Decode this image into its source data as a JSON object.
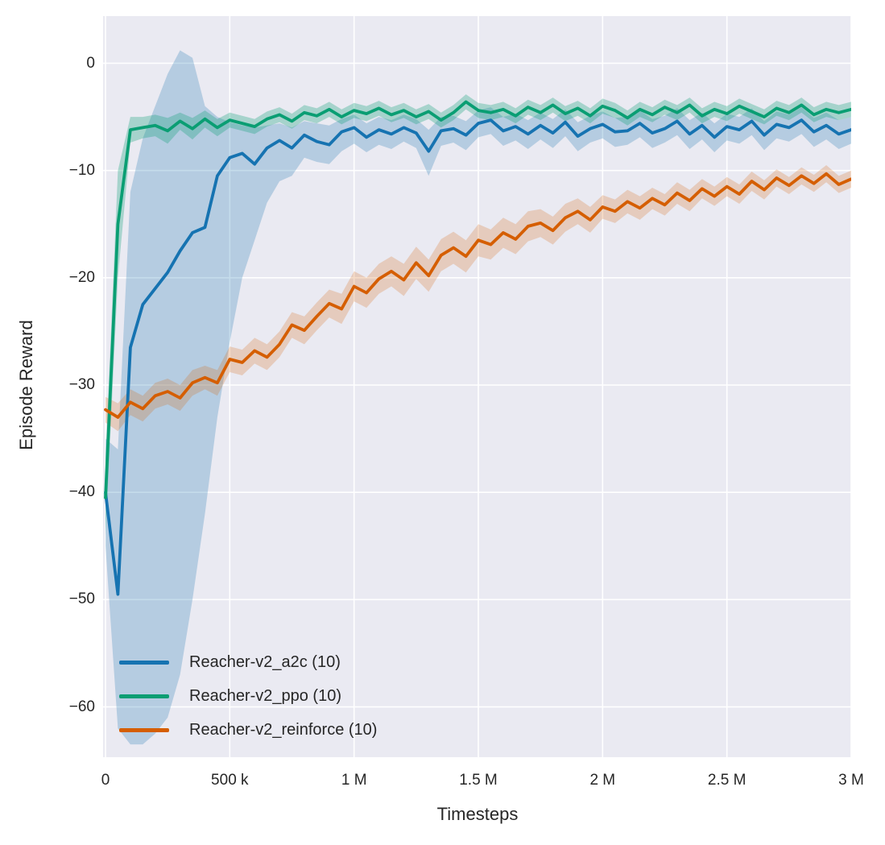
{
  "figure": {
    "background": "#ffffff",
    "axes_background": "#eaeaf2",
    "grid_color": "#ffffff",
    "text_color": "#262626"
  },
  "chart_data": {
    "type": "line",
    "title": "",
    "xlabel": "Timesteps",
    "ylabel": "Episode Reward",
    "xlim": [
      0,
      3000000
    ],
    "ylim": [
      -64.7,
      4.4
    ],
    "grid": true,
    "legend_position": "lower-left",
    "x_ticks": [
      {
        "value": 0,
        "label": "0"
      },
      {
        "value": 500000,
        "label": "500 k"
      },
      {
        "value": 1000000,
        "label": "1 M"
      },
      {
        "value": 1500000,
        "label": "1.5 M"
      },
      {
        "value": 2000000,
        "label": "2 M"
      },
      {
        "value": 2500000,
        "label": "2.5 M"
      },
      {
        "value": 3000000,
        "label": "3 M"
      }
    ],
    "y_ticks": [
      {
        "value": 0,
        "label": "0"
      },
      {
        "value": -10,
        "label": "−10"
      },
      {
        "value": -20,
        "label": "−20"
      },
      {
        "value": -30,
        "label": "−30"
      },
      {
        "value": -40,
        "label": "−40"
      },
      {
        "value": -50,
        "label": "−50"
      },
      {
        "value": -60,
        "label": "−60"
      }
    ],
    "x": [
      0,
      50000,
      100000,
      150000,
      200000,
      250000,
      300000,
      350000,
      400000,
      450000,
      500000,
      550000,
      600000,
      650000,
      700000,
      750000,
      800000,
      850000,
      900000,
      950000,
      1000000,
      1050000,
      1100000,
      1150000,
      1200000,
      1250000,
      1300000,
      1350000,
      1400000,
      1450000,
      1500000,
      1550000,
      1600000,
      1650000,
      1700000,
      1750000,
      1800000,
      1850000,
      1900000,
      1950000,
      2000000,
      2050000,
      2100000,
      2150000,
      2200000,
      2250000,
      2300000,
      2350000,
      2400000,
      2450000,
      2500000,
      2550000,
      2600000,
      2650000,
      2700000,
      2750000,
      2800000,
      2850000,
      2900000,
      2950000,
      3000000
    ],
    "series": [
      {
        "name": "Reacher-v2_a2c (10)",
        "color": "#1673b1",
        "band_opacity": 0.25,
        "mean": [
          -40.0,
          -49.5,
          -26.5,
          -22.5,
          -21.0,
          -19.5,
          -17.5,
          -15.8,
          -15.3,
          -10.5,
          -8.8,
          -8.4,
          -9.4,
          -7.9,
          -7.2,
          -7.9,
          -6.7,
          -7.3,
          -7.6,
          -6.4,
          -6.0,
          -6.9,
          -6.2,
          -6.6,
          -6.0,
          -6.5,
          -8.2,
          -6.3,
          -6.1,
          -6.7,
          -5.6,
          -5.3,
          -6.3,
          -5.9,
          -6.6,
          -5.8,
          -6.5,
          -5.5,
          -6.8,
          -6.1,
          -5.7,
          -6.4,
          -6.3,
          -5.6,
          -6.5,
          -6.1,
          -5.4,
          -6.6,
          -5.8,
          -6.9,
          -5.9,
          -6.2,
          -5.4,
          -6.7,
          -5.7,
          -6.0,
          -5.3,
          -6.4,
          -5.8,
          -6.6,
          -6.2
        ],
        "lo": [
          -45.0,
          -62.0,
          -63.5,
          -63.5,
          -62.5,
          -61.0,
          -57.0,
          -50.0,
          -42.0,
          -33.0,
          -26.0,
          -20.0,
          -16.5,
          -13.0,
          -11.0,
          -10.5,
          -8.8,
          -9.2,
          -9.4,
          -8.2,
          -7.5,
          -8.3,
          -7.6,
          -8.0,
          -7.3,
          -7.9,
          -10.5,
          -7.7,
          -7.4,
          -8.1,
          -6.9,
          -6.6,
          -7.7,
          -7.2,
          -8.0,
          -7.1,
          -7.9,
          -6.8,
          -8.2,
          -7.4,
          -7.0,
          -7.8,
          -7.6,
          -6.9,
          -7.9,
          -7.4,
          -6.7,
          -8.0,
          -7.1,
          -8.3,
          -7.2,
          -7.5,
          -6.7,
          -8.1,
          -7.0,
          -7.3,
          -6.6,
          -7.8,
          -7.1,
          -8.0,
          -7.5
        ],
        "hi": [
          -35.0,
          -36.0,
          -12.0,
          -7.0,
          -4.0,
          -1.0,
          1.2,
          0.5,
          -4.0,
          -5.0,
          -5.5,
          -5.8,
          -6.0,
          -5.8,
          -5.6,
          -6.0,
          -5.4,
          -5.6,
          -5.8,
          -5.2,
          -4.8,
          -5.6,
          -5.0,
          -5.3,
          -4.8,
          -5.2,
          -6.2,
          -5.0,
          -4.9,
          -5.4,
          -4.4,
          -4.1,
          -5.0,
          -4.7,
          -5.3,
          -4.6,
          -5.2,
          -4.3,
          -5.5,
          -4.9,
          -4.5,
          -5.1,
          -5.0,
          -4.4,
          -5.2,
          -4.9,
          -4.2,
          -5.3,
          -4.6,
          -5.6,
          -4.7,
          -5.0,
          -4.2,
          -5.4,
          -4.5,
          -4.8,
          -4.1,
          -5.1,
          -4.6,
          -5.3,
          -5.0
        ]
      },
      {
        "name": "Reacher-v2_ppo (10)",
        "color": "#0a9e73",
        "band_opacity": 0.3,
        "mean": [
          -40.5,
          -15.0,
          -6.2,
          -6.0,
          -5.8,
          -6.3,
          -5.4,
          -6.1,
          -5.2,
          -6.0,
          -5.3,
          -5.6,
          -5.9,
          -5.2,
          -4.8,
          -5.4,
          -4.6,
          -4.9,
          -4.3,
          -5.0,
          -4.4,
          -4.7,
          -4.2,
          -4.8,
          -4.4,
          -5.0,
          -4.5,
          -5.3,
          -4.6,
          -3.6,
          -4.4,
          -4.6,
          -4.3,
          -4.9,
          -4.1,
          -4.6,
          -3.9,
          -4.7,
          -4.2,
          -4.9,
          -4.0,
          -4.4,
          -5.1,
          -4.3,
          -4.8,
          -4.1,
          -4.6,
          -3.9,
          -4.9,
          -4.3,
          -4.7,
          -4.0,
          -4.5,
          -5.0,
          -4.2,
          -4.6,
          -3.9,
          -4.8,
          -4.3,
          -4.6,
          -4.3
        ],
        "lo": [
          -44.0,
          -20.0,
          -7.4,
          -7.0,
          -6.8,
          -7.5,
          -6.2,
          -7.1,
          -6.0,
          -6.8,
          -6.0,
          -6.3,
          -6.6,
          -5.9,
          -5.5,
          -6.1,
          -5.3,
          -5.6,
          -5.0,
          -5.7,
          -5.1,
          -5.4,
          -4.9,
          -5.5,
          -5.1,
          -5.7,
          -5.2,
          -6.0,
          -5.3,
          -4.3,
          -5.1,
          -5.3,
          -5.0,
          -5.6,
          -4.8,
          -5.3,
          -4.6,
          -5.4,
          -4.9,
          -5.6,
          -4.7,
          -5.1,
          -5.8,
          -5.0,
          -5.5,
          -4.8,
          -5.3,
          -4.6,
          -5.6,
          -5.0,
          -5.4,
          -4.7,
          -5.2,
          -5.7,
          -4.9,
          -5.3,
          -4.6,
          -5.5,
          -5.0,
          -5.3,
          -5.0
        ],
        "hi": [
          -37.0,
          -10.0,
          -5.0,
          -5.0,
          -4.8,
          -5.1,
          -4.6,
          -5.1,
          -4.4,
          -5.2,
          -4.6,
          -4.9,
          -5.2,
          -4.5,
          -4.1,
          -4.7,
          -3.9,
          -4.2,
          -3.6,
          -4.3,
          -3.7,
          -4.0,
          -3.5,
          -4.1,
          -3.7,
          -4.3,
          -3.8,
          -4.6,
          -3.9,
          -2.9,
          -3.7,
          -3.9,
          -3.6,
          -4.2,
          -3.4,
          -3.9,
          -3.2,
          -4.0,
          -3.5,
          -4.2,
          -3.3,
          -3.7,
          -4.4,
          -3.6,
          -4.1,
          -3.4,
          -3.9,
          -3.2,
          -4.2,
          -3.6,
          -4.0,
          -3.3,
          -3.8,
          -4.3,
          -3.5,
          -3.9,
          -3.2,
          -4.1,
          -3.6,
          -3.9,
          -3.6
        ]
      },
      {
        "name": "Reacher-v2_reinforce (10)",
        "color": "#d55e00",
        "band_opacity": 0.22,
        "mean": [
          -32.3,
          -33.0,
          -31.6,
          -32.2,
          -31.0,
          -30.6,
          -31.2,
          -29.8,
          -29.3,
          -29.8,
          -27.6,
          -27.9,
          -26.8,
          -27.4,
          -26.2,
          -24.4,
          -24.9,
          -23.6,
          -22.4,
          -22.9,
          -20.8,
          -21.4,
          -20.1,
          -19.4,
          -20.2,
          -18.6,
          -19.8,
          -17.9,
          -17.2,
          -18.0,
          -16.5,
          -16.9,
          -15.8,
          -16.4,
          -15.2,
          -14.9,
          -15.6,
          -14.4,
          -13.8,
          -14.6,
          -13.4,
          -13.8,
          -12.9,
          -13.5,
          -12.6,
          -13.2,
          -12.1,
          -12.8,
          -11.7,
          -12.4,
          -11.5,
          -12.2,
          -11.0,
          -11.8,
          -10.7,
          -11.4,
          -10.5,
          -11.2,
          -10.3,
          -11.3,
          -10.8
        ],
        "lo": [
          -33.5,
          -34.3,
          -32.8,
          -33.4,
          -32.2,
          -31.8,
          -32.4,
          -31.0,
          -30.4,
          -31.0,
          -28.8,
          -29.1,
          -28.0,
          -28.6,
          -27.4,
          -25.6,
          -26.2,
          -24.9,
          -23.7,
          -24.3,
          -22.2,
          -22.8,
          -21.5,
          -20.8,
          -21.7,
          -20.1,
          -21.3,
          -19.4,
          -18.7,
          -19.5,
          -18.0,
          -18.3,
          -17.2,
          -17.8,
          -16.6,
          -16.2,
          -16.9,
          -15.7,
          -15.0,
          -15.8,
          -14.5,
          -14.9,
          -14.0,
          -14.6,
          -13.6,
          -14.2,
          -13.1,
          -13.8,
          -12.6,
          -13.3,
          -12.4,
          -13.1,
          -11.9,
          -12.7,
          -11.5,
          -12.2,
          -11.3,
          -12.0,
          -11.1,
          -12.1,
          -11.6
        ],
        "hi": [
          -31.1,
          -31.7,
          -30.4,
          -31.0,
          -29.8,
          -29.4,
          -30.0,
          -28.6,
          -28.2,
          -28.6,
          -26.4,
          -26.7,
          -25.6,
          -26.2,
          -25.0,
          -23.2,
          -23.6,
          -22.3,
          -21.1,
          -21.5,
          -19.4,
          -20.0,
          -18.7,
          -18.0,
          -18.7,
          -17.1,
          -18.3,
          -16.4,
          -15.7,
          -16.5,
          -15.0,
          -15.5,
          -14.4,
          -15.0,
          -13.8,
          -13.6,
          -14.3,
          -13.1,
          -12.6,
          -13.4,
          -12.3,
          -12.7,
          -11.8,
          -12.4,
          -11.6,
          -12.2,
          -11.1,
          -11.8,
          -10.8,
          -11.5,
          -10.6,
          -11.3,
          -10.1,
          -10.9,
          -9.9,
          -10.6,
          -9.7,
          -10.4,
          -9.5,
          -10.5,
          -10.0
        ]
      }
    ]
  }
}
